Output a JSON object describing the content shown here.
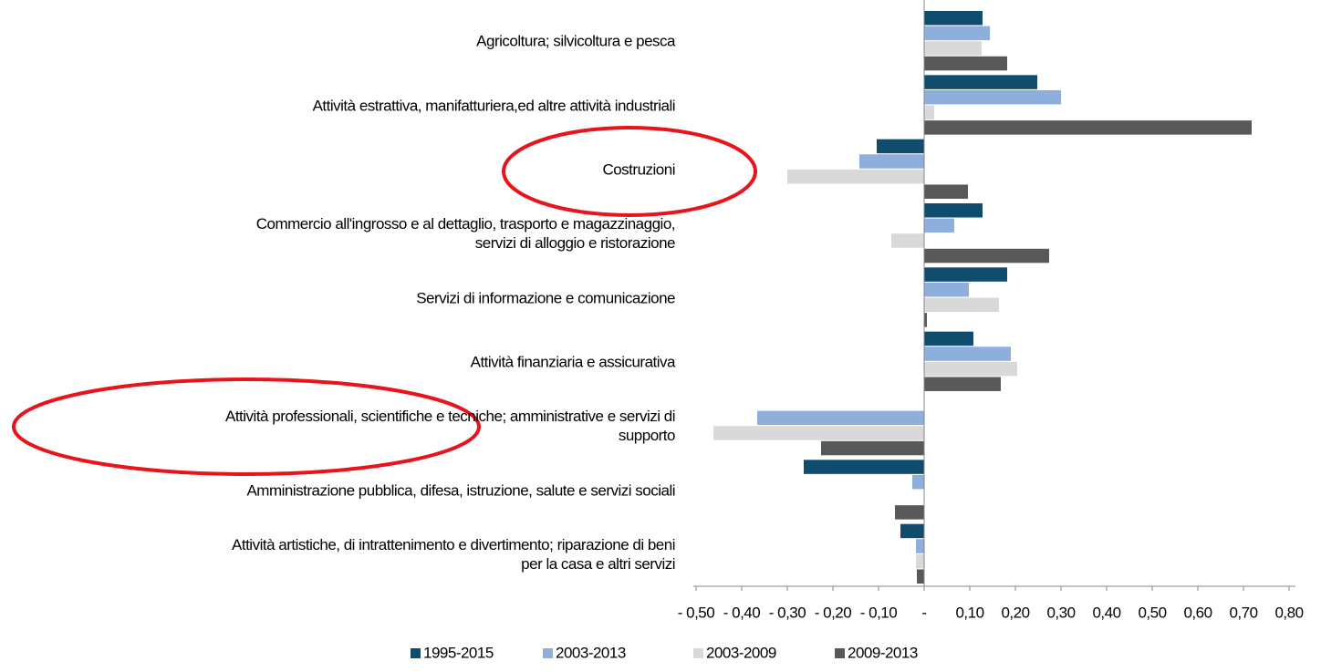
{
  "chart_data": {
    "type": "hbar",
    "categories": [
      "Agricoltura; silvicoltura e pesca",
      "Attività estrattiva, manifatturiera,ed altre attività industriali",
      "Costruzioni",
      "Commercio all'ingrosso e al dettaglio, trasporto e magazzinaggio,\nservizi di alloggio e ristorazione",
      "Servizi di informazione e comunicazione",
      "Attività finanziaria e assicurativa",
      "Attività professionali, scientifiche e tecniche; amministrative e servizi di\nsupporto",
      "Amministrazione pubblica, difesa, istruzione, salute e servizi sociali",
      "Attività artistiche, di intrattenimento e divertimento; riparazione di beni\nper la casa e altri servizi"
    ],
    "series": [
      {
        "name": "1995-2015",
        "color": "#0f4c6e",
        "values": [
          0.128,
          0.248,
          -0.104,
          0.128,
          0.182,
          0.108,
          null,
          -0.264,
          -0.052
        ]
      },
      {
        "name": "2003-2013",
        "color": "#8eaedc",
        "values": [
          0.144,
          0.3,
          -0.142,
          0.066,
          0.098,
          0.19,
          -0.366,
          -0.026,
          -0.018
        ]
      },
      {
        "name": "2003-2009",
        "color": "#d9d9d9",
        "values": [
          0.126,
          0.022,
          -0.3,
          -0.072,
          0.164,
          0.204,
          -0.462,
          null,
          -0.018
        ]
      },
      {
        "name": "2009-2013",
        "color": "#595959",
        "values": [
          0.182,
          0.718,
          0.096,
          0.274,
          0.006,
          0.168,
          -0.226,
          -0.064,
          -0.016
        ]
      }
    ],
    "xlim": [
      -0.5,
      0.8
    ],
    "xticks": [
      {
        "value": -0.5,
        "label": "- 0,50"
      },
      {
        "value": -0.4,
        "label": "- 0,40"
      },
      {
        "value": -0.3,
        "label": "- 0,30"
      },
      {
        "value": -0.2,
        "label": "- 0,20"
      },
      {
        "value": -0.1,
        "label": "- 0,10"
      },
      {
        "value": 0,
        "label": "-"
      },
      {
        "value": 0.1,
        "label": "0,10"
      },
      {
        "value": 0.2,
        "label": "0,20"
      },
      {
        "value": 0.3,
        "label": "0,30"
      },
      {
        "value": 0.4,
        "label": "0,40"
      },
      {
        "value": 0.5,
        "label": "0,50"
      },
      {
        "value": 0.6,
        "label": "0,60"
      },
      {
        "value": 0.7,
        "label": "0,70"
      },
      {
        "value": 0.8,
        "label": "0,80"
      }
    ],
    "grid": false,
    "legend": "bottom"
  }
}
